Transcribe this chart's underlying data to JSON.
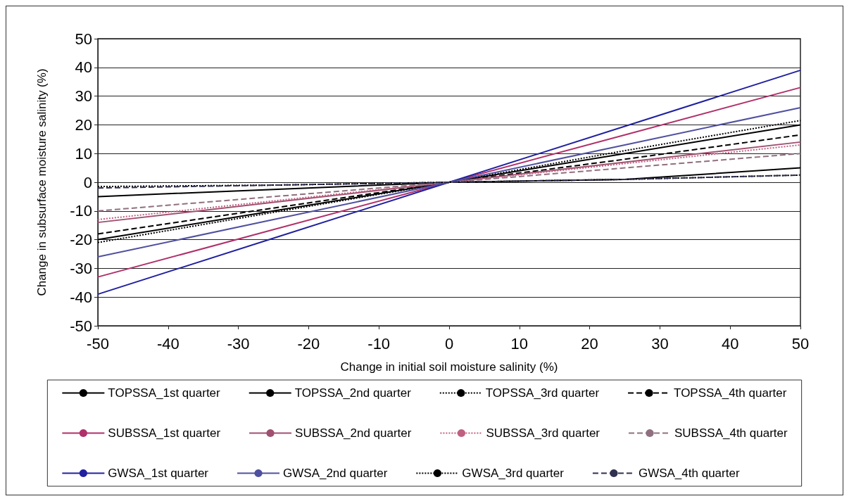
{
  "chart_data": {
    "type": "line",
    "xlabel": "Change in initial soil moisture salinity (%)",
    "ylabel": "Change in subsurface moisture salinity (%)",
    "x": [
      -50,
      -25,
      0,
      25,
      50
    ],
    "series": [
      {
        "name": "TOPSSA_1st quarter",
        "color": "#000000",
        "line_style": "solid",
        "values": [
          -20,
          -10,
          0,
          10,
          20
        ]
      },
      {
        "name": "TOPSSA_2nd quarter",
        "color": "#000000",
        "line_style": "solid",
        "values": [
          -5,
          -2.5,
          0,
          1,
          5
        ]
      },
      {
        "name": "TOPSSA_3rd quarter",
        "color": "#000000",
        "line_style": "dotted",
        "values": [
          -21,
          -10.5,
          0,
          11,
          21.5
        ]
      },
      {
        "name": "TOPSSA_4th quarter",
        "color": "#000000",
        "line_style": "dashed",
        "values": [
          -18,
          -9,
          0,
          8,
          16.5
        ]
      },
      {
        "name": "SUBSSA_1st quarter",
        "color": "#b0306a",
        "line_style": "solid",
        "values": [
          -33,
          -16.5,
          0,
          16.5,
          33
        ]
      },
      {
        "name": "SUBSSA_2nd quarter",
        "color": "#a05070",
        "line_style": "solid",
        "values": [
          -14,
          -7,
          0,
          7,
          14
        ]
      },
      {
        "name": "SUBSSA_3rd quarter",
        "color": "#c06080",
        "line_style": "dotted",
        "values": [
          -13,
          -6.5,
          0,
          6.5,
          13
        ]
      },
      {
        "name": "SUBSSA_4th quarter",
        "color": "#907080",
        "line_style": "dashed",
        "values": [
          -10,
          -5,
          0,
          5,
          10
        ]
      },
      {
        "name": "GWSA_1st quarter",
        "color": "#2020a0",
        "line_style": "solid",
        "values": [
          -39,
          -19.5,
          0,
          19.5,
          39
        ]
      },
      {
        "name": "GWSA_2nd quarter",
        "color": "#5050a0",
        "line_style": "solid",
        "values": [
          -26,
          -13,
          0,
          13,
          26
        ]
      },
      {
        "name": "GWSA_3rd quarter",
        "color": "#000000",
        "line_style": "dotted",
        "values": [
          -1.5,
          -1,
          0,
          1,
          2.5
        ]
      },
      {
        "name": "GWSA_4th quarter",
        "color": "#303050",
        "line_style": "dashed",
        "values": [
          -2,
          -1,
          0,
          1,
          2.5
        ]
      }
    ],
    "xlim": [
      -50,
      50
    ],
    "xticks": [
      -50,
      -40,
      -30,
      -20,
      -10,
      0,
      10,
      20,
      30,
      40,
      50
    ],
    "ylim": [
      -50,
      50
    ],
    "yticks": [
      -50,
      -40,
      -30,
      -20,
      -10,
      0,
      10,
      20,
      30,
      40,
      50
    ],
    "grid": "y",
    "legend": "bottom",
    "marker": "none"
  }
}
